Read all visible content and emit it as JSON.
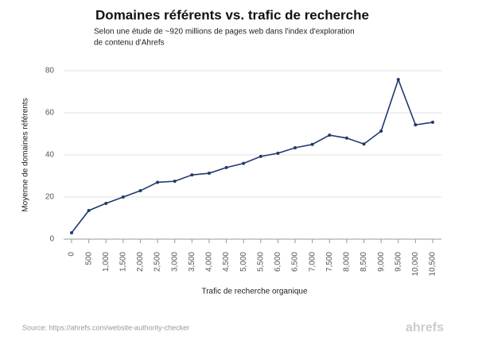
{
  "chart_data": {
    "type": "line",
    "title": "Domaines référents vs. trafic de recherche",
    "subtitle": [
      "Selon une étude de ~920 millions de pages web dans l'index d'exploration",
      "de contenu d'Ahrefs"
    ],
    "x_label": "Trafic de recherche organique",
    "y_label": "Moyenne de domaines référents",
    "source": "Source: https://ahrefs.com/website-authority-checker",
    "logo": "ahrefs",
    "color": "#1f3a6e",
    "grid": true,
    "x": [
      0,
      500,
      1000,
      1500,
      2000,
      2500,
      3000,
      3500,
      4000,
      4500,
      5000,
      5500,
      6000,
      6500,
      7000,
      7500,
      8000,
      8500,
      9000,
      9500,
      10000,
      10500
    ],
    "values": [
      3,
      13.6,
      17,
      20,
      23,
      27,
      27.5,
      30.5,
      31.3,
      34,
      36,
      39.3,
      40.8,
      43.4,
      45,
      49.4,
      48,
      45.2,
      51.3,
      75.8,
      54.3,
      55.5
    ],
    "xlim": [
      0,
      10500
    ],
    "xticks": [
      0,
      500,
      {
        "value": 1000,
        "label": "1,000"
      },
      {
        "value": 1500,
        "label": "1,500"
      },
      {
        "value": 2000,
        "label": "2,000"
      },
      {
        "value": 2500,
        "label": "2,500"
      },
      {
        "value": 3000,
        "label": "3,000"
      },
      {
        "value": 3500,
        "label": "3,500"
      },
      {
        "value": 4000,
        "label": "4,000"
      },
      {
        "value": 4500,
        "label": "4,500"
      },
      {
        "value": 5000,
        "label": "5,000"
      },
      {
        "value": 5500,
        "label": "5,500"
      },
      {
        "value": 6000,
        "label": "6,000"
      },
      {
        "value": 6500,
        "label": "6,500"
      },
      {
        "value": 7000,
        "label": "7,000"
      },
      {
        "value": 7500,
        "label": "7,500"
      },
      {
        "value": 8000,
        "label": "8,000"
      },
      {
        "value": 8500,
        "label": "8,500"
      },
      {
        "value": 9000,
        "label": "9,000"
      },
      {
        "value": 9500,
        "label": "9,500"
      },
      {
        "value": 10000,
        "label": "10,000"
      },
      {
        "value": 10500,
        "label": "10,500"
      }
    ],
    "ylim": [
      0,
      80
    ],
    "yticks": [
      0,
      20,
      40,
      60,
      80
    ]
  }
}
